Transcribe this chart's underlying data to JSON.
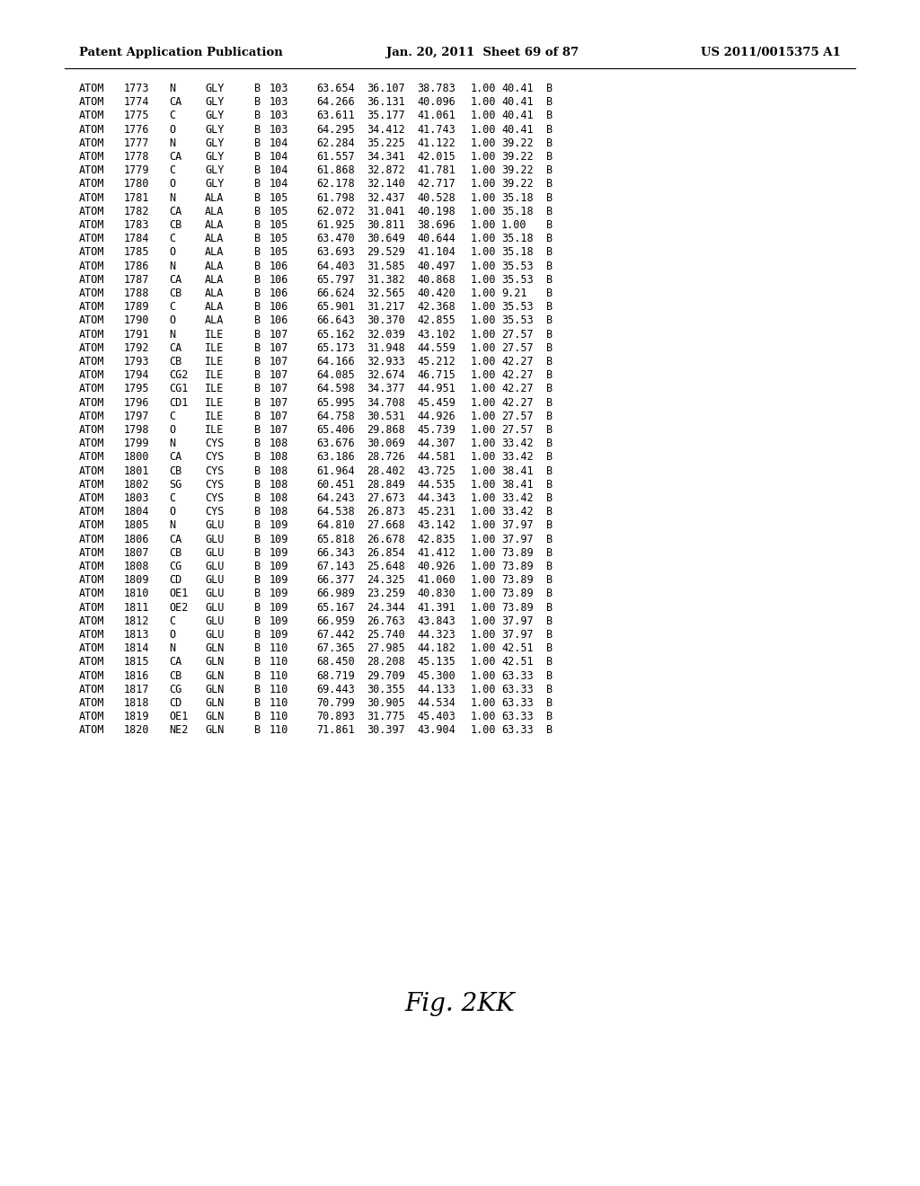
{
  "header_left": "Patent Application Publication",
  "header_center": "Jan. 20, 2011  Sheet 69 of 87",
  "header_right": "US 2011/0015375 A1",
  "figure_label": "Fig. 2KK",
  "rows": [
    [
      "ATOM",
      "1773",
      "N",
      "GLY",
      "B",
      "103",
      "63.654",
      "36.107",
      "38.783",
      "1.00",
      "40.41",
      "B"
    ],
    [
      "ATOM",
      "1774",
      "CA",
      "GLY",
      "B",
      "103",
      "64.266",
      "36.131",
      "40.096",
      "1.00",
      "40.41",
      "B"
    ],
    [
      "ATOM",
      "1775",
      "C",
      "GLY",
      "B",
      "103",
      "63.611",
      "35.177",
      "41.061",
      "1.00",
      "40.41",
      "B"
    ],
    [
      "ATOM",
      "1776",
      "O",
      "GLY",
      "B",
      "103",
      "64.295",
      "34.412",
      "41.743",
      "1.00",
      "40.41",
      "B"
    ],
    [
      "ATOM",
      "1777",
      "N",
      "GLY",
      "B",
      "104",
      "62.284",
      "35.225",
      "41.122",
      "1.00",
      "39.22",
      "B"
    ],
    [
      "ATOM",
      "1778",
      "CA",
      "GLY",
      "B",
      "104",
      "61.557",
      "34.341",
      "42.015",
      "1.00",
      "39.22",
      "B"
    ],
    [
      "ATOM",
      "1779",
      "C",
      "GLY",
      "B",
      "104",
      "61.868",
      "32.872",
      "41.781",
      "1.00",
      "39.22",
      "B"
    ],
    [
      "ATOM",
      "1780",
      "O",
      "GLY",
      "B",
      "104",
      "62.178",
      "32.140",
      "42.717",
      "1.00",
      "39.22",
      "B"
    ],
    [
      "ATOM",
      "1781",
      "N",
      "ALA",
      "B",
      "105",
      "61.798",
      "32.437",
      "40.528",
      "1.00",
      "35.18",
      "B"
    ],
    [
      "ATOM",
      "1782",
      "CA",
      "ALA",
      "B",
      "105",
      "62.072",
      "31.041",
      "40.198",
      "1.00",
      "35.18",
      "B"
    ],
    [
      "ATOM",
      "1783",
      "CB",
      "ALA",
      "B",
      "105",
      "61.925",
      "30.811",
      "38.696",
      "1.00",
      "1.00",
      "B"
    ],
    [
      "ATOM",
      "1784",
      "C",
      "ALA",
      "B",
      "105",
      "63.470",
      "30.649",
      "40.644",
      "1.00",
      "35.18",
      "B"
    ],
    [
      "ATOM",
      "1785",
      "O",
      "ALA",
      "B",
      "105",
      "63.693",
      "29.529",
      "41.104",
      "1.00",
      "35.18",
      "B"
    ],
    [
      "ATOM",
      "1786",
      "N",
      "ALA",
      "B",
      "106",
      "64.403",
      "31.585",
      "40.497",
      "1.00",
      "35.53",
      "B"
    ],
    [
      "ATOM",
      "1787",
      "CA",
      "ALA",
      "B",
      "106",
      "65.797",
      "31.382",
      "40.868",
      "1.00",
      "35.53",
      "B"
    ],
    [
      "ATOM",
      "1788",
      "CB",
      "ALA",
      "B",
      "106",
      "66.624",
      "32.565",
      "40.420",
      "1.00",
      "9.21",
      "B"
    ],
    [
      "ATOM",
      "1789",
      "C",
      "ALA",
      "B",
      "106",
      "65.901",
      "31.217",
      "42.368",
      "1.00",
      "35.53",
      "B"
    ],
    [
      "ATOM",
      "1790",
      "O",
      "ALA",
      "B",
      "106",
      "66.643",
      "30.370",
      "42.855",
      "1.00",
      "35.53",
      "B"
    ],
    [
      "ATOM",
      "1791",
      "N",
      "ILE",
      "B",
      "107",
      "65.162",
      "32.039",
      "43.102",
      "1.00",
      "27.57",
      "B"
    ],
    [
      "ATOM",
      "1792",
      "CA",
      "ILE",
      "B",
      "107",
      "65.173",
      "31.948",
      "44.559",
      "1.00",
      "27.57",
      "B"
    ],
    [
      "ATOM",
      "1793",
      "CB",
      "ILE",
      "B",
      "107",
      "64.166",
      "32.933",
      "45.212",
      "1.00",
      "42.27",
      "B"
    ],
    [
      "ATOM",
      "1794",
      "CG2",
      "ILE",
      "B",
      "107",
      "64.085",
      "32.674",
      "46.715",
      "1.00",
      "42.27",
      "B"
    ],
    [
      "ATOM",
      "1795",
      "CG1",
      "ILE",
      "B",
      "107",
      "64.598",
      "34.377",
      "44.951",
      "1.00",
      "42.27",
      "B"
    ],
    [
      "ATOM",
      "1796",
      "CD1",
      "ILE",
      "B",
      "107",
      "65.995",
      "34.708",
      "45.459",
      "1.00",
      "42.27",
      "B"
    ],
    [
      "ATOM",
      "1797",
      "C",
      "ILE",
      "B",
      "107",
      "64.758",
      "30.531",
      "44.926",
      "1.00",
      "27.57",
      "B"
    ],
    [
      "ATOM",
      "1798",
      "O",
      "ILE",
      "B",
      "107",
      "65.406",
      "29.868",
      "45.739",
      "1.00",
      "27.57",
      "B"
    ],
    [
      "ATOM",
      "1799",
      "N",
      "CYS",
      "B",
      "108",
      "63.676",
      "30.069",
      "44.307",
      "1.00",
      "33.42",
      "B"
    ],
    [
      "ATOM",
      "1800",
      "CA",
      "CYS",
      "B",
      "108",
      "63.186",
      "28.726",
      "44.581",
      "1.00",
      "33.42",
      "B"
    ],
    [
      "ATOM",
      "1801",
      "CB",
      "CYS",
      "B",
      "108",
      "61.964",
      "28.402",
      "43.725",
      "1.00",
      "38.41",
      "B"
    ],
    [
      "ATOM",
      "1802",
      "SG",
      "CYS",
      "B",
      "108",
      "60.451",
      "28.849",
      "44.535",
      "1.00",
      "38.41",
      "B"
    ],
    [
      "ATOM",
      "1803",
      "C",
      "CYS",
      "B",
      "108",
      "64.243",
      "27.673",
      "44.343",
      "1.00",
      "33.42",
      "B"
    ],
    [
      "ATOM",
      "1804",
      "O",
      "CYS",
      "B",
      "108",
      "64.538",
      "26.873",
      "45.231",
      "1.00",
      "33.42",
      "B"
    ],
    [
      "ATOM",
      "1805",
      "N",
      "GLU",
      "B",
      "109",
      "64.810",
      "27.668",
      "43.142",
      "1.00",
      "37.97",
      "B"
    ],
    [
      "ATOM",
      "1806",
      "CA",
      "GLU",
      "B",
      "109",
      "65.818",
      "26.678",
      "42.835",
      "1.00",
      "37.97",
      "B"
    ],
    [
      "ATOM",
      "1807",
      "CB",
      "GLU",
      "B",
      "109",
      "66.343",
      "26.854",
      "41.412",
      "1.00",
      "73.89",
      "B"
    ],
    [
      "ATOM",
      "1808",
      "CG",
      "GLU",
      "B",
      "109",
      "67.143",
      "25.648",
      "40.926",
      "1.00",
      "73.89",
      "B"
    ],
    [
      "ATOM",
      "1809",
      "CD",
      "GLU",
      "B",
      "109",
      "66.377",
      "24.325",
      "41.060",
      "1.00",
      "73.89",
      "B"
    ],
    [
      "ATOM",
      "1810",
      "OE1",
      "GLU",
      "B",
      "109",
      "66.989",
      "23.259",
      "40.830",
      "1.00",
      "73.89",
      "B"
    ],
    [
      "ATOM",
      "1811",
      "OE2",
      "GLU",
      "B",
      "109",
      "65.167",
      "24.344",
      "41.391",
      "1.00",
      "73.89",
      "B"
    ],
    [
      "ATOM",
      "1812",
      "C",
      "GLU",
      "B",
      "109",
      "66.959",
      "26.763",
      "43.843",
      "1.00",
      "37.97",
      "B"
    ],
    [
      "ATOM",
      "1813",
      "O",
      "GLU",
      "B",
      "109",
      "67.442",
      "25.740",
      "44.323",
      "1.00",
      "37.97",
      "B"
    ],
    [
      "ATOM",
      "1814",
      "N",
      "GLN",
      "B",
      "110",
      "67.365",
      "27.985",
      "44.182",
      "1.00",
      "42.51",
      "B"
    ],
    [
      "ATOM",
      "1815",
      "CA",
      "GLN",
      "B",
      "110",
      "68.450",
      "28.208",
      "45.135",
      "1.00",
      "42.51",
      "B"
    ],
    [
      "ATOM",
      "1816",
      "CB",
      "GLN",
      "B",
      "110",
      "68.719",
      "29.709",
      "45.300",
      "1.00",
      "63.33",
      "B"
    ],
    [
      "ATOM",
      "1817",
      "CG",
      "GLN",
      "B",
      "110",
      "69.443",
      "30.355",
      "44.133",
      "1.00",
      "63.33",
      "B"
    ],
    [
      "ATOM",
      "1818",
      "CD",
      "GLN",
      "B",
      "110",
      "70.799",
      "30.905",
      "44.534",
      "1.00",
      "63.33",
      "B"
    ],
    [
      "ATOM",
      "1819",
      "OE1",
      "GLN",
      "B",
      "110",
      "70.893",
      "31.775",
      "45.403",
      "1.00",
      "63.33",
      "B"
    ],
    [
      "ATOM",
      "1820",
      "NE2",
      "GLN",
      "B",
      "110",
      "71.861",
      "30.397",
      "43.904",
      "1.00",
      "63.33",
      "B"
    ]
  ],
  "bg_color": "#ffffff",
  "text_color": "#000000",
  "header_font_size": 9.5,
  "data_font_size": 8.5,
  "figure_label_font_size": 20
}
